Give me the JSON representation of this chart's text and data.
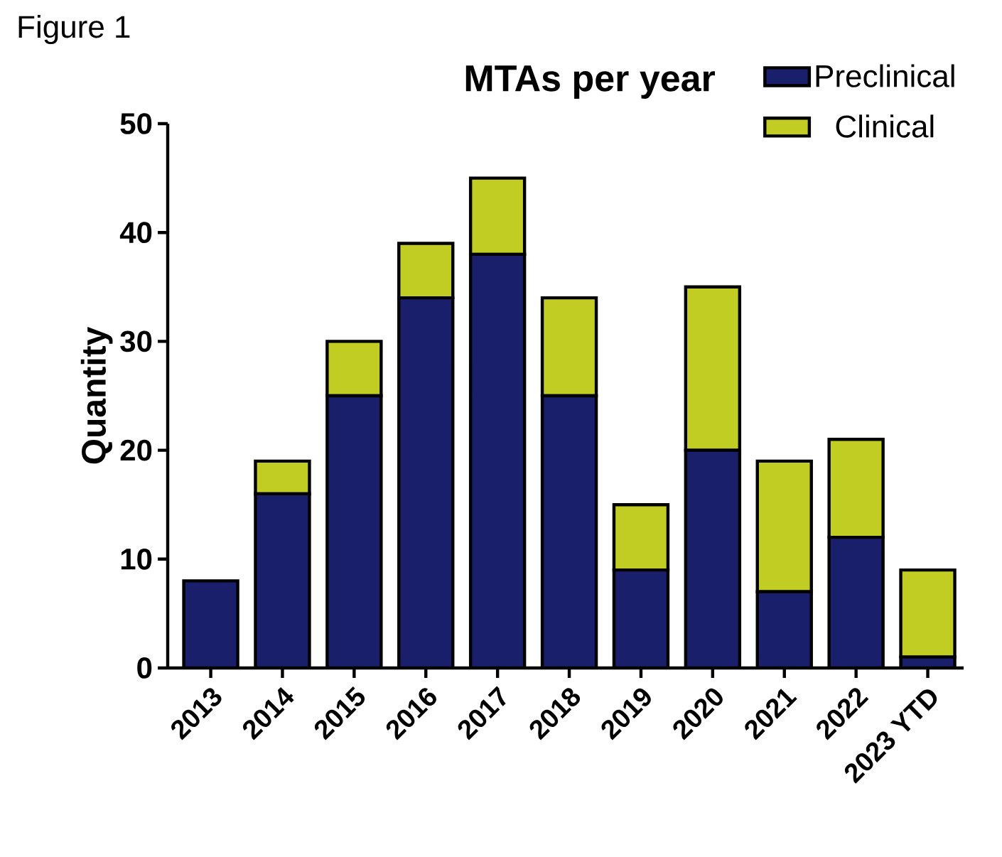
{
  "chart_data": {
    "type": "bar",
    "title": "MTAs per year",
    "ylabel": "Quantity",
    "annotations": [
      "Figure 1"
    ],
    "categories": [
      "2013",
      "2014",
      "2015",
      "2016",
      "2017",
      "2018",
      "2019",
      "2020",
      "2021",
      "2022",
      "2023 YTD"
    ],
    "series": [
      {
        "name": "Preclinical",
        "color": "#1a1f6b",
        "values": [
          8,
          16,
          25,
          34,
          38,
          25,
          9,
          20,
          7,
          12,
          1
        ]
      },
      {
        "name": "Clinical",
        "color": "#c2cd23",
        "values": [
          0,
          3,
          5,
          5,
          7,
          9,
          6,
          15,
          12,
          9,
          8
        ]
      }
    ],
    "stacked": true,
    "ylim": [
      0,
      50
    ],
    "yticks": [
      0,
      10,
      20,
      30,
      40,
      50
    ],
    "legend": "top right"
  }
}
